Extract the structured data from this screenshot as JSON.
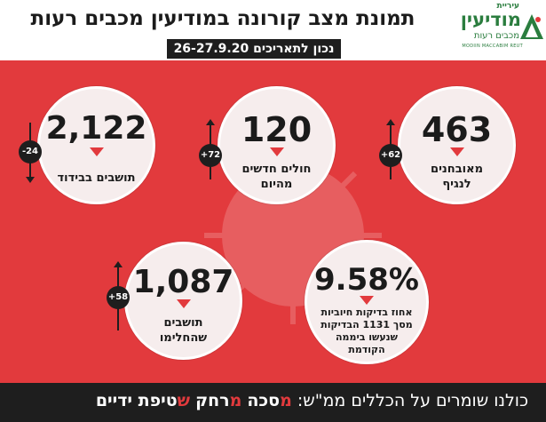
{
  "header": {
    "title": "תמונת מצב קורונה במודיעין מכבים רעות",
    "date": "נכון לתאריכים 26-27.9.20"
  },
  "logo": {
    "small": "עיריית",
    "main": "מודיעין",
    "sub": "מכבים רעות",
    "en": "MODIIN MACCABIM REUT"
  },
  "stats": [
    {
      "value": "463",
      "label_line1": "מאובחנים",
      "label_line2": "לנגיף",
      "change": "+62"
    },
    {
      "value": "120",
      "label_line1": "חולים חדשים",
      "label_line2": "מהיום",
      "change": "+72"
    },
    {
      "value": "2,122",
      "label_line1": "תושבים בבידוד",
      "label_line2": "",
      "change": "-24"
    },
    {
      "value": "9.58%",
      "label_line1": "אחוז בדיקות חיוביות",
      "label_line2": "מסך 1131 הבדיקות",
      "label_line3": "שנעשו ביממה",
      "label_line4": "הקודמת"
    },
    {
      "value": "1,087",
      "label_line1": "תושבים",
      "label_line2": "שהחלימו",
      "change": "+58"
    }
  ],
  "footer": {
    "prefix": "כולנו שומרים על הכללים ממ\"ש:",
    "w1_first": "מ",
    "w1_rest": "סכה",
    "w2_first": "מ",
    "w2_rest": "רחק",
    "w3_first": "ש",
    "w3_rest": "טיפת ידיים"
  },
  "colors": {
    "accent": "#e23a3d",
    "dark": "#1e1e1e",
    "brand_green": "#2a7d3e"
  }
}
